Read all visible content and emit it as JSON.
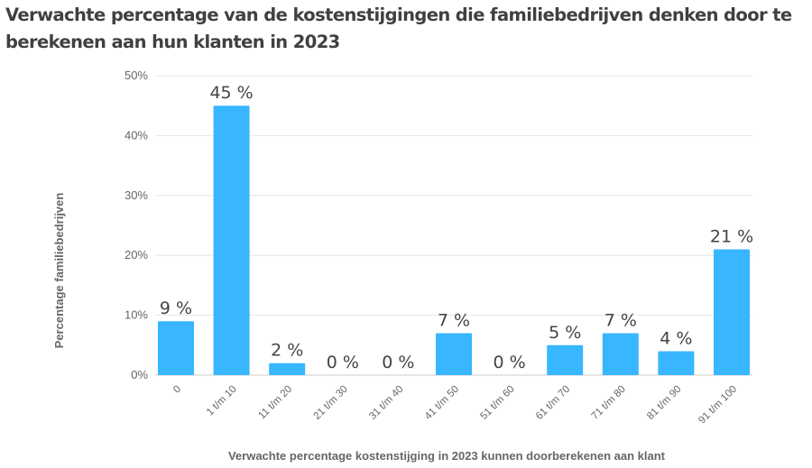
{
  "chart_data": {
    "type": "bar",
    "title": "Verwachte percentage van de kostenstijgingen die familiebedrijven denken door te berekenen aan hun klanten in 2023",
    "xlabel": "Verwachte percentage kostenstijging in 2023 kunnen doorberekenen aan klant",
    "ylabel": "Percentage familiebedrijven",
    "categories": [
      "0",
      "1 t/m 10",
      "11 t/m 20",
      "21 t/m 30",
      "31 t/m 40",
      "41 t/m 50",
      "51 t/m 60",
      "61 t/m 70",
      "71 t/m 80",
      "81 t/m 90",
      "91 t/m 100"
    ],
    "values": [
      9,
      45,
      2,
      0,
      0,
      7,
      0,
      5,
      7,
      4,
      21
    ],
    "data_labels": [
      "9 %",
      "45 %",
      "2 %",
      "0 %",
      "0 %",
      "7 %",
      "0 %",
      "5 %",
      "7 %",
      "4 %",
      "21 %"
    ],
    "yticks": [
      0,
      10,
      20,
      30,
      40,
      50
    ],
    "ytick_labels": [
      "0%",
      "10%",
      "20%",
      "30%",
      "40%",
      "50%"
    ],
    "ylim": [
      0,
      50
    ],
    "grid": true,
    "bar_color": "#38b6ff"
  }
}
